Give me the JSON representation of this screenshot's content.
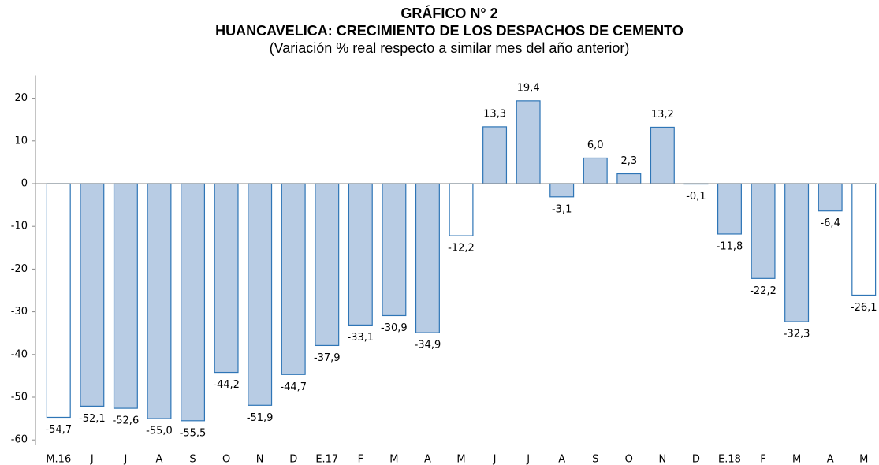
{
  "chart_data": {
    "type": "bar",
    "title": "GRÁFICO N° 2",
    "subtitle": "HUANCAVELICA: CRECIMIENTO DE LOS DESPACHOS DE CEMENTO",
    "note": "(Variación % real respecto a similar mes del año anterior)",
    "categories": [
      "M.16",
      "J",
      "J",
      "A",
      "S",
      "O",
      "N",
      "D",
      "E.17",
      "F",
      "M",
      "A",
      "M",
      "J",
      "J",
      "A",
      "S",
      "O",
      "N",
      "D",
      "E.18",
      "F",
      "M",
      "A",
      "M"
    ],
    "values": [
      -54.7,
      -52.1,
      -52.6,
      -55.0,
      -55.5,
      -44.2,
      -51.9,
      -44.7,
      -37.9,
      -33.1,
      -30.9,
      -34.9,
      -12.2,
      13.3,
      19.4,
      -3.1,
      6.0,
      2.3,
      13.2,
      -0.1,
      -11.8,
      -22.2,
      -32.3,
      -6.4,
      -26.1
    ],
    "value_labels": [
      "-54,7",
      "-52,1",
      "-52,6",
      "-55,0",
      "-55,5",
      "-44,2",
      "-51,9",
      "-44,7",
      "-37,9",
      "-33,1",
      "-30,9",
      "-34,9",
      "-12,2",
      "13,3",
      "19,4",
      "-3,1",
      "6,0",
      "2,3",
      "13,2",
      "-0,1",
      "-11,8",
      "-22,2",
      "-32,3",
      "-6,4",
      "-26,1"
    ],
    "colors": [
      "#ffffff",
      "#b8cce4",
      "#b8cce4",
      "#b8cce4",
      "#b8cce4",
      "#b8cce4",
      "#b8cce4",
      "#b8cce4",
      "#b8cce4",
      "#b8cce4",
      "#b8cce4",
      "#b8cce4",
      "#ffffff",
      "#b8cce4",
      "#b8cce4",
      "#b8cce4",
      "#b8cce4",
      "#b8cce4",
      "#b8cce4",
      "#b8cce4",
      "#b8cce4",
      "#b8cce4",
      "#b8cce4",
      "#b8cce4",
      "#ffffff"
    ],
    "edge_color": "#2e75b6",
    "ylim": [
      -60,
      25
    ],
    "yticks": [
      -60,
      -50,
      -40,
      -30,
      -20,
      -10,
      0,
      10,
      20
    ],
    "grid": false
  }
}
